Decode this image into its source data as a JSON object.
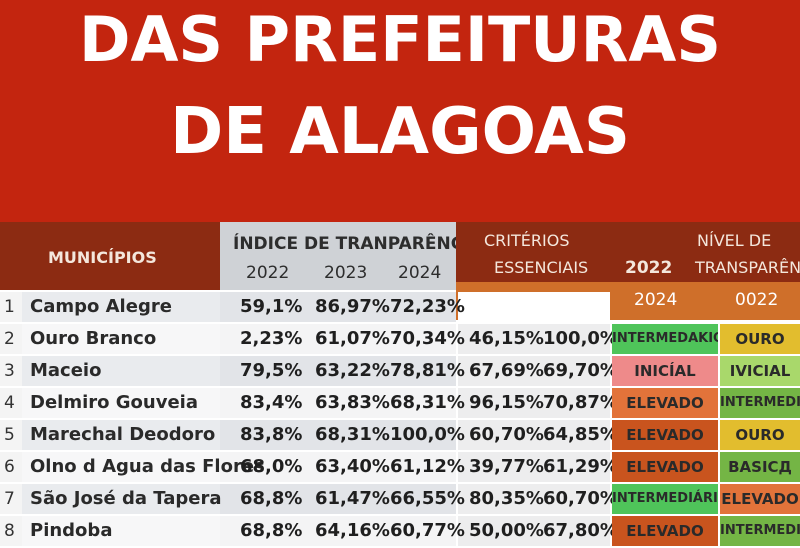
{
  "banner": {
    "line1": "DAS PREFEITURAS",
    "line2": "DE ALAGOAS"
  },
  "header": {
    "municipios": "MUNICÍPIOS",
    "indice": "ÍNDICE DE TRANPARÊNCIA",
    "indice_years": [
      "2022",
      "2023",
      "2024"
    ],
    "criterios_line1": "CRITÉRIOS",
    "criterios_line2": "ESSENCIAIS",
    "nivel_year": "2022",
    "nivel_line1": "NÍVEL DE",
    "nivel_line2": "TRANSPARÊN",
    "sub_years": [
      "2022",
      "2023",
      "2024",
      "0022"
    ]
  },
  "colors": {
    "banner": "#c3250f",
    "header_dark": "#8c2b12",
    "header_orange": "#cf6f2a",
    "green": "#4fc45a",
    "pink": "#ee8a8a",
    "orange": "#e2733a",
    "dark_orange": "#c9541e",
    "gold": "#e2bd2e",
    "light_green": "#a9d86b",
    "mid_green": "#74b545"
  },
  "rows": [
    {
      "num": "1",
      "name": "Campo Alegre",
      "idx2022": "59,1%",
      "idx2023": "86,97%",
      "idx2024": "72,23%",
      "crit2022": "",
      "crit2023": "",
      "nivel2024": "",
      "nivel2022": ""
    },
    {
      "num": "2",
      "name": "Ouro Branco",
      "idx2022": "2,23%",
      "idx2023": "61,07%",
      "idx2024": "70,34%",
      "crit2022": "46,15%",
      "crit2023": "100,0%",
      "nivel2024": "INTERMEDAKIO",
      "nivel2022": "OURO"
    },
    {
      "num": "3",
      "name": "Maceio",
      "idx2022": "79,5%",
      "idx2023": "63,22%",
      "idx2024": "78,81%",
      "crit2022": "67,69%",
      "crit2023": "69,70%",
      "nivel2024": "INICÍAL",
      "nivel2022": "IVICIAL"
    },
    {
      "num": "4",
      "name": "Delmiro Gouveia",
      "idx2022": "83,4%",
      "idx2023": "63,83%",
      "idx2024": "68,31%",
      "crit2022": "96,15%",
      "crit2023": "70,87%",
      "nivel2024": "ELEVADO",
      "nivel2022": "INTERMEDIA"
    },
    {
      "num": "5",
      "name": "Marechal Deodoro",
      "idx2022": "83,8%",
      "idx2023": "68,31%",
      "idx2024": "100,0%",
      "crit2022": "60,70%",
      "crit2023": "64,85%",
      "nivel2024": "ELEVADO",
      "nivel2022": "OURO"
    },
    {
      "num": "6",
      "name": "Olno d Agua das Flores",
      "idx2022": "68,0%",
      "idx2023": "63,40%",
      "idx2024": "61,12%",
      "crit2022": "39,77%",
      "crit2023": "61,29%",
      "nivel2024": "ELEVADO",
      "nivel2022": "BASICД"
    },
    {
      "num": "7",
      "name": "São José da Tapera",
      "idx2022": "68,8%",
      "idx2023": "61,47%",
      "idx2024": "66,55%",
      "crit2022": "80,35%",
      "crit2023": "60,70%",
      "nivel2024": "INTERMEDIÁRIO",
      "nivel2022": "ELEVADO"
    },
    {
      "num": "8",
      "name": "Pindoba",
      "idx2022": "68,8%",
      "idx2023": "64,16%",
      "idx2024": "60,77%",
      "crit2022": "50,00%",
      "crit2023": "67,80%",
      "nivel2024": "ELEVADO",
      "nivel2022": "INTERMEDIÁ"
    }
  ]
}
